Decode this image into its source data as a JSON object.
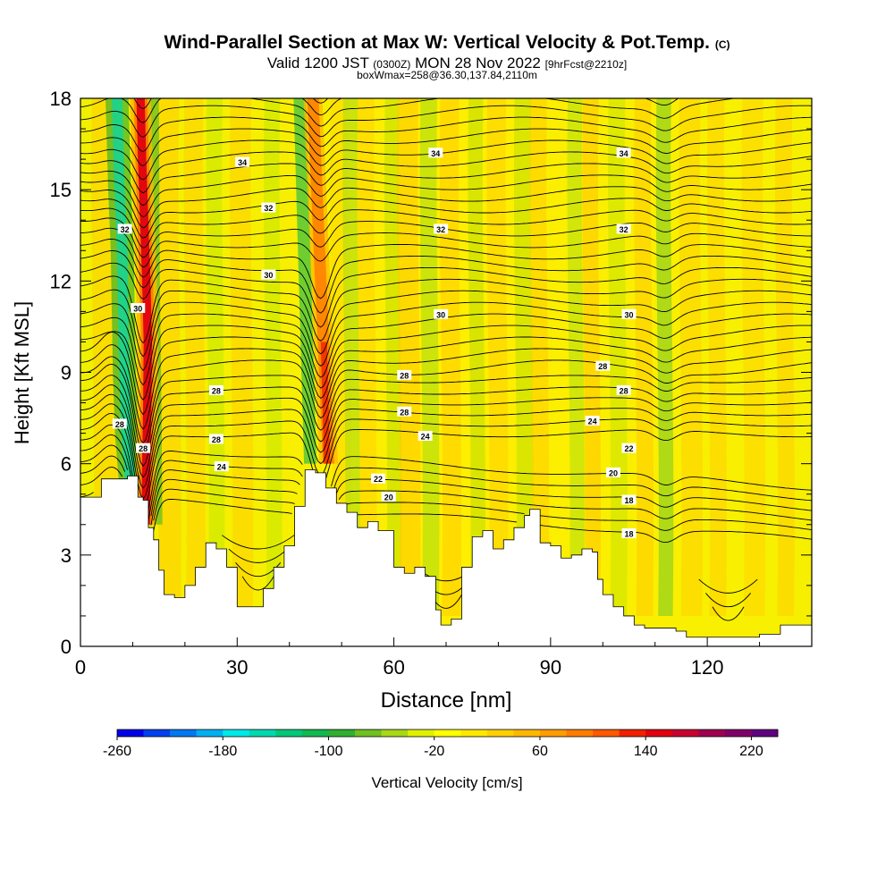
{
  "header": {
    "title": "Wind-Parallel Section at Max W: Vertical Velocity & Pot.Temp.",
    "copyright": "(C)",
    "valid_prefix": "Valid 1200 JST",
    "valid_utc": "(0300Z)",
    "valid_date": "MON 28 Nov 2022",
    "forecast": "[9hrFcst@2210z]",
    "box_info": "boxWmax=258@36.30,137.84,2110m"
  },
  "chart_data": {
    "type": "heatmap",
    "xlabel": "Distance [nm]",
    "ylabel": "Height [Kft MSL]",
    "xlim": [
      0,
      140
    ],
    "ylim": [
      0,
      18
    ],
    "x_ticks": [
      "0",
      "30",
      "60",
      "90",
      "120"
    ],
    "y_ticks": [
      "0",
      "3",
      "6",
      "9",
      "12",
      "15",
      "18"
    ],
    "colorbar": {
      "label": "Vertical Velocity [cm/s]",
      "tick_labels": [
        "-260",
        "-180",
        "-100",
        "-20",
        "60",
        "140",
        "220"
      ],
      "colors": [
        "#0000e8",
        "#0040f0",
        "#0078f0",
        "#00b0f0",
        "#00e8e8",
        "#00d8b0",
        "#00c878",
        "#10b850",
        "#30b030",
        "#70c020",
        "#a8d818",
        "#e0f000",
        "#ffff00",
        "#ffe800",
        "#ffd000",
        "#ffb800",
        "#ff9c00",
        "#ff7c00",
        "#ff5800",
        "#f02000",
        "#e00010",
        "#c80030",
        "#a00050",
        "#800068",
        "#600080"
      ]
    },
    "terrain_kft": [
      [
        0,
        4.9
      ],
      [
        2,
        4.9
      ],
      [
        4,
        5.5
      ],
      [
        7,
        5.5
      ],
      [
        9,
        5.6
      ],
      [
        11,
        4.9
      ],
      [
        12,
        4.8
      ],
      [
        13,
        3.9
      ],
      [
        14,
        3.5
      ],
      [
        15,
        2.5
      ],
      [
        16,
        1.7
      ],
      [
        18,
        1.6
      ],
      [
        20,
        2.0
      ],
      [
        22,
        2.6
      ],
      [
        24,
        3.4
      ],
      [
        26,
        3.2
      ],
      [
        28,
        2.6
      ],
      [
        30,
        1.3
      ],
      [
        33,
        1.3
      ],
      [
        35,
        1.9
      ],
      [
        37,
        2.6
      ],
      [
        39,
        3.3
      ],
      [
        41,
        4.6
      ],
      [
        43,
        5.8
      ],
      [
        45,
        5.7
      ],
      [
        47,
        5.2
      ],
      [
        49,
        4.7
      ],
      [
        51,
        4.4
      ],
      [
        53,
        3.9
      ],
      [
        55,
        4.1
      ],
      [
        57,
        3.8
      ],
      [
        60,
        2.6
      ],
      [
        62,
        2.4
      ],
      [
        64,
        2.6
      ],
      [
        66,
        2.3
      ],
      [
        68,
        1.2
      ],
      [
        69,
        0.7
      ],
      [
        71,
        0.9
      ],
      [
        73,
        2.6
      ],
      [
        75,
        3.6
      ],
      [
        77,
        3.8
      ],
      [
        79,
        3.2
      ],
      [
        81,
        3.5
      ],
      [
        83,
        3.9
      ],
      [
        85,
        4.3
      ],
      [
        86,
        4.5
      ],
      [
        88,
        3.4
      ],
      [
        90,
        3.3
      ],
      [
        92,
        2.9
      ],
      [
        94,
        3.0
      ],
      [
        96,
        3.2
      ],
      [
        98,
        3.1
      ],
      [
        99,
        2.2
      ],
      [
        100,
        1.7
      ],
      [
        102,
        1.3
      ],
      [
        104,
        1.0
      ],
      [
        106,
        0.7
      ],
      [
        108,
        0.6
      ],
      [
        112,
        0.6
      ],
      [
        114,
        0.5
      ],
      [
        116,
        0.3
      ],
      [
        120,
        0.3
      ],
      [
        123,
        0.3
      ],
      [
        126,
        0.3
      ],
      [
        128,
        0.3
      ],
      [
        130,
        0.4
      ],
      [
        134,
        0.7
      ],
      [
        140,
        0.7
      ]
    ],
    "contour_levels": [
      16,
      18,
      20,
      22,
      24,
      26,
      28,
      30,
      32,
      34
    ],
    "contour_labels": [
      {
        "text": "34",
        "x": 31,
        "y": 15.9
      },
      {
        "text": "34",
        "x": 68,
        "y": 16.2
      },
      {
        "text": "34",
        "x": 104,
        "y": 16.2
      },
      {
        "text": "32",
        "x": 8.5,
        "y": 13.7
      },
      {
        "text": "32",
        "x": 36,
        "y": 14.4
      },
      {
        "text": "32",
        "x": 69,
        "y": 13.7
      },
      {
        "text": "32",
        "x": 104,
        "y": 13.7
      },
      {
        "text": "30",
        "x": 36,
        "y": 12.2
      },
      {
        "text": "30",
        "x": 11,
        "y": 11.1
      },
      {
        "text": "30",
        "x": 69,
        "y": 10.9
      },
      {
        "text": "30",
        "x": 105,
        "y": 10.9
      },
      {
        "text": "28",
        "x": 62,
        "y": 8.9
      },
      {
        "text": "28",
        "x": 100,
        "y": 9.2
      },
      {
        "text": "28",
        "x": 26,
        "y": 8.4
      },
      {
        "text": "28",
        "x": 62,
        "y": 7.7
      },
      {
        "text": "28",
        "x": 104,
        "y": 8.4
      },
      {
        "text": "28",
        "x": 26,
        "y": 6.8
      },
      {
        "text": "28",
        "x": 7.5,
        "y": 7.3
      },
      {
        "text": "28",
        "x": 12,
        "y": 6.5
      },
      {
        "text": "24",
        "x": 66,
        "y": 6.9
      },
      {
        "text": "24",
        "x": 98,
        "y": 7.4
      },
      {
        "text": "24",
        "x": 27,
        "y": 5.9
      },
      {
        "text": "22",
        "x": 57,
        "y": 5.5
      },
      {
        "text": "22",
        "x": 105,
        "y": 6.5
      },
      {
        "text": "20",
        "x": 59,
        "y": 4.9
      },
      {
        "text": "20",
        "x": 102,
        "y": 5.7
      },
      {
        "text": "18",
        "x": 105,
        "y": 4.8
      },
      {
        "text": "18",
        "x": 105,
        "y": 3.7
      }
    ]
  }
}
